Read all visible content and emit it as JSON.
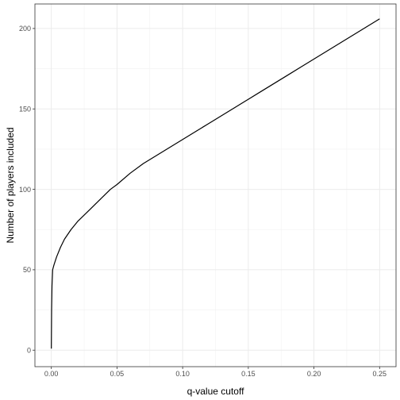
{
  "chart_data": {
    "type": "line",
    "xlabel": "q-value cutoff",
    "ylabel": "Number of players included",
    "xlim": [
      -0.0125,
      0.2625
    ],
    "ylim": [
      -10.25,
      215.25
    ],
    "x_ticks": [
      0.0,
      0.05,
      0.1,
      0.15,
      0.2,
      0.25
    ],
    "x_tick_labels": [
      "0.00",
      "0.05",
      "0.10",
      "0.15",
      "0.20",
      "0.25"
    ],
    "y_ticks": [
      0,
      50,
      100,
      150,
      200
    ],
    "y_tick_labels": [
      "0",
      "50",
      "100",
      "150",
      "200"
    ],
    "grid": true,
    "series": [
      {
        "color": "#000000",
        "x": [
          0.0,
          0.0002,
          0.0005,
          0.001,
          0.002,
          0.004,
          0.007,
          0.01,
          0.015,
          0.02,
          0.03,
          0.04,
          0.045,
          0.05,
          0.06,
          0.07,
          0.08,
          0.09,
          0.1,
          0.11,
          0.12,
          0.13,
          0.14,
          0.15,
          0.16,
          0.17,
          0.18,
          0.19,
          0.2,
          0.21,
          0.22,
          0.23,
          0.24,
          0.25
        ],
        "y": [
          1,
          25,
          40,
          50,
          53,
          58,
          64,
          69,
          75,
          80,
          88,
          96,
          100,
          103,
          110,
          116,
          121,
          126,
          131,
          136,
          141,
          146,
          151,
          156,
          161,
          166,
          171,
          176,
          181,
          186,
          191,
          196,
          201,
          206
        ]
      }
    ]
  }
}
